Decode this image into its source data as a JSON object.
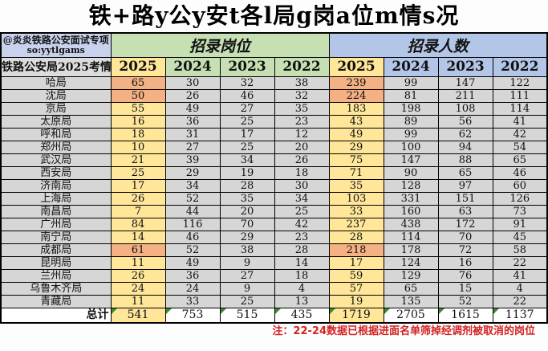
{
  "title": "铁+路y公y安t各l局g岗a位m情s况",
  "header": {
    "source_line1": "@炎炎铁路公安面试专项",
    "source_line2": "so:yytlgams",
    "row_label": "铁路公安局2025考情",
    "positions_group": "招录岗位",
    "people_group": "招录人数",
    "years": [
      "2025",
      "2024",
      "2023",
      "2022"
    ]
  },
  "colors": {
    "yellow": "#ffe699",
    "orange": "#f4b183",
    "green": "#c6e0b4",
    "blue": "#b4c6e7",
    "gray": "#d6d6d6",
    "lgray": "#dcdcdc",
    "leftblue": "#c8d2ec",
    "notered": "#d42222",
    "trigreen": "#3a8a2e"
  },
  "chart_data": {
    "type": "table",
    "title": "铁+路y公y安t各l局g岗a位m情s况",
    "column_groups": [
      "招录岗位",
      "招录人数"
    ],
    "years": [
      "2025",
      "2024",
      "2023",
      "2022"
    ],
    "rows": [
      {
        "name": "哈局",
        "positions": [
          65,
          30,
          32,
          38
        ],
        "people": [
          239,
          99,
          147,
          122
        ],
        "orange_highlight": true
      },
      {
        "name": "沈局",
        "positions": [
          50,
          26,
          46,
          32
        ],
        "people": [
          224,
          81,
          211,
          111
        ],
        "orange_highlight": true
      },
      {
        "name": "京局",
        "positions": [
          55,
          49,
          27,
          35
        ],
        "people": [
          183,
          198,
          108,
          114
        ],
        "orange_highlight": false
      },
      {
        "name": "太原局",
        "positions": [
          16,
          36,
          25,
          23
        ],
        "people": [
          43,
          89,
          56,
          41
        ],
        "orange_highlight": false
      },
      {
        "name": "呼和局",
        "positions": [
          18,
          31,
          17,
          12
        ],
        "people": [
          49,
          99,
          62,
          42
        ],
        "orange_highlight": false
      },
      {
        "name": "郑州局",
        "positions": [
          10,
          27,
          25,
          20
        ],
        "people": [
          29,
          100,
          94,
          54
        ],
        "orange_highlight": false
      },
      {
        "name": "武汉局",
        "positions": [
          21,
          39,
          34,
          26
        ],
        "people": [
          75,
          147,
          88,
          65
        ],
        "orange_highlight": false
      },
      {
        "name": "西安局",
        "positions": [
          25,
          29,
          19,
          18
        ],
        "people": [
          71,
          90,
          65,
          46
        ],
        "orange_highlight": false
      },
      {
        "name": "济南局",
        "positions": [
          17,
          34,
          28,
          30
        ],
        "people": [
          35,
          128,
          97,
          60
        ],
        "orange_highlight": false
      },
      {
        "name": "上海局",
        "positions": [
          26,
          52,
          35,
          34
        ],
        "people": [
          103,
          331,
          151,
          126
        ],
        "orange_highlight": false
      },
      {
        "name": "南昌局",
        "positions": [
          7,
          44,
          20,
          25
        ],
        "people": [
          33,
          160,
          63,
          73
        ],
        "orange_highlight": false
      },
      {
        "name": "广州局",
        "positions": [
          84,
          116,
          70,
          42
        ],
        "people": [
          237,
          438,
          172,
          91
        ],
        "orange_highlight": false
      },
      {
        "name": "南宁局",
        "positions": [
          14,
          46,
          29,
          23
        ],
        "people": [
          28,
          114,
          70,
          45
        ],
        "orange_highlight": false
      },
      {
        "name": "成都局",
        "positions": [
          61,
          52,
          38,
          28
        ],
        "people": [
          218,
          178,
          72,
          58
        ],
        "orange_highlight": true
      },
      {
        "name": "昆明局",
        "positions": [
          11,
          49,
          9,
          14
        ],
        "people": [
          17,
          124,
          16,
          22
        ],
        "orange_highlight": false
      },
      {
        "name": "兰州局",
        "positions": [
          26,
          36,
          27,
          18
        ],
        "people": [
          59,
          129,
          76,
          41
        ],
        "orange_highlight": false
      },
      {
        "name": "乌鲁木齐局",
        "positions": [
          24,
          24,
          9,
          4
        ],
        "people": [
          57,
          65,
          15,
          4
        ],
        "orange_highlight": false
      },
      {
        "name": "青藏局",
        "positions": [
          11,
          33,
          25,
          13
        ],
        "people": [
          19,
          135,
          52,
          22
        ],
        "orange_highlight": false
      }
    ],
    "total": {
      "label": "总计",
      "positions": [
        541,
        753,
        515,
        435
      ],
      "people": [
        1719,
        2705,
        1615,
        1137
      ]
    }
  },
  "footnote": "注：22-24数据已根据进面名单筛掉经调剂被取消的岗位"
}
